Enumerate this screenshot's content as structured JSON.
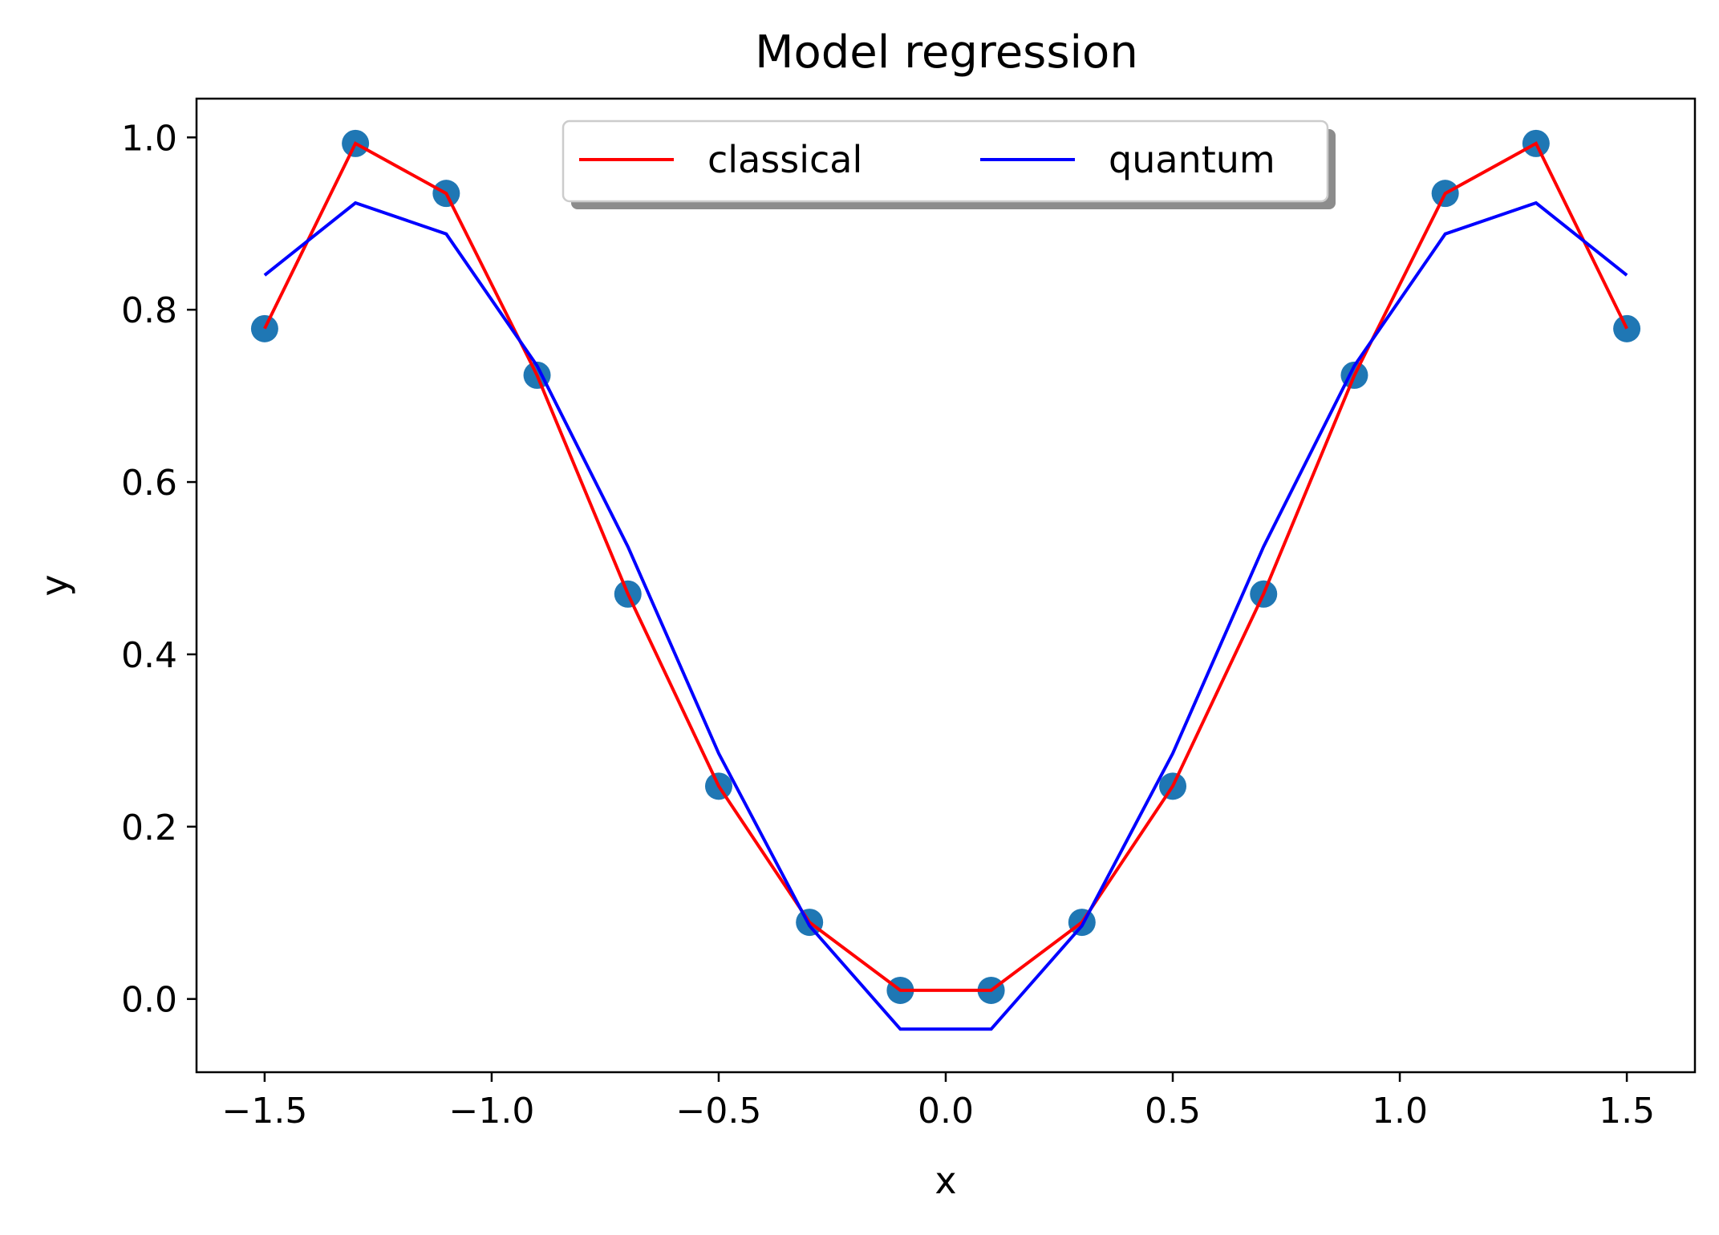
{
  "chart_data": {
    "type": "line",
    "title": "Model regression",
    "xlabel": "x",
    "ylabel": "y",
    "xlim": [
      -1.65,
      1.65
    ],
    "ylim": [
      -0.085,
      1.045
    ],
    "xticks": [
      -1.5,
      -1.0,
      -0.5,
      0.0,
      0.5,
      1.0,
      1.5
    ],
    "xtick_labels": [
      "−1.5",
      "−1.0",
      "−0.5",
      "0.0",
      "0.5",
      "1.0",
      "1.5"
    ],
    "yticks": [
      0.0,
      0.2,
      0.4,
      0.6,
      0.8,
      1.0
    ],
    "ytick_labels": [
      "0.0",
      "0.2",
      "0.4",
      "0.6",
      "0.8",
      "1.0"
    ],
    "grid": false,
    "legend": {
      "placement": "upper-center",
      "columns": 2,
      "shadow": true
    },
    "x": [
      -1.5,
      -1.3,
      -1.1,
      -0.9,
      -0.7,
      -0.5,
      -0.3,
      -0.1,
      0.1,
      0.3,
      0.5,
      0.7,
      0.9,
      1.1,
      1.3,
      1.5
    ],
    "scatter": {
      "color": "#1f77b4",
      "values": [
        0.778,
        0.993,
        0.935,
        0.724,
        0.47,
        0.247,
        0.089,
        0.01,
        0.01,
        0.089,
        0.247,
        0.47,
        0.724,
        0.935,
        0.993,
        0.778
      ]
    },
    "series": [
      {
        "name": "classical",
        "color": "#ff0000",
        "values": [
          0.778,
          0.993,
          0.935,
          0.724,
          0.47,
          0.247,
          0.089,
          0.01,
          0.01,
          0.089,
          0.247,
          0.47,
          0.724,
          0.935,
          0.993,
          0.778
        ]
      },
      {
        "name": "quantum",
        "color": "#0000ff",
        "values": [
          0.84,
          0.924,
          0.888,
          0.735,
          0.525,
          0.285,
          0.085,
          -0.035,
          -0.035,
          0.085,
          0.285,
          0.525,
          0.735,
          0.888,
          0.924,
          0.84
        ]
      }
    ]
  }
}
